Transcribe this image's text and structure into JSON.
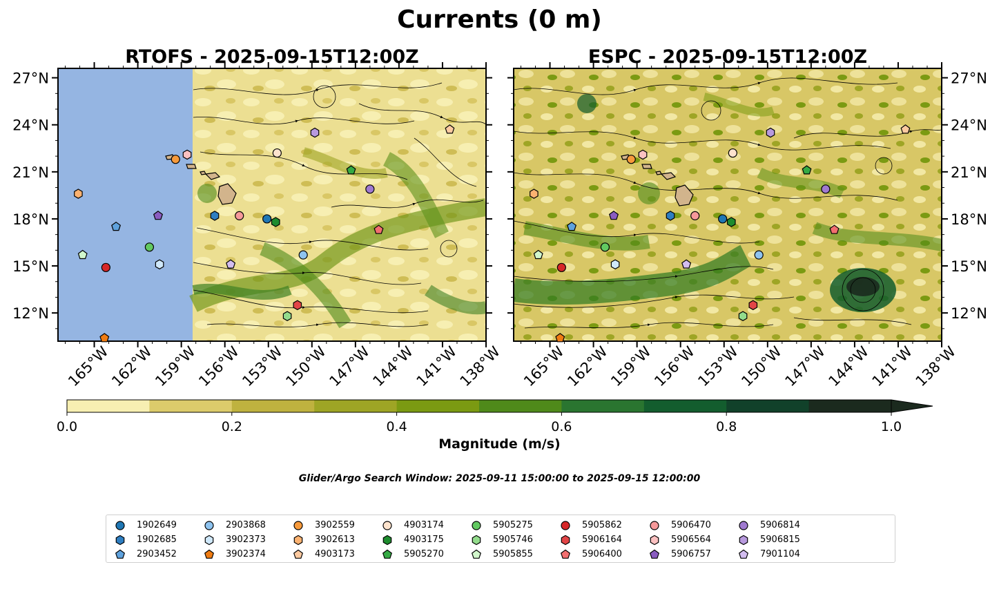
{
  "figure_title": "Currents (0 m)",
  "search_window": "Glider/Argo Search Window: 2025-09-11 15:00:00 to 2025-09-15 12:00:00",
  "chart_data": [
    {
      "type": "map",
      "panel": "left",
      "title": "RTOFS - 2025-09-15T12:00Z",
      "xlim": [
        -167.5,
        -138
      ],
      "ylim": [
        10.2,
        27.6
      ],
      "x_ticks": [
        -165,
        -162,
        -159,
        -156,
        -153,
        -150,
        -147,
        -144,
        -141,
        -138
      ],
      "x_tick_labels": [
        "165°W",
        "162°W",
        "159°W",
        "156°W",
        "153°W",
        "150°W",
        "147°W",
        "144°W",
        "141°W",
        "138°W"
      ],
      "y_ticks": [
        12,
        15,
        18,
        21,
        24,
        27
      ],
      "y_tick_labels": [
        "12°N",
        "15°N",
        "18°N",
        "21°N",
        "24°N",
        "27°N"
      ],
      "data_extent_lon": [
        -158.2,
        -138
      ],
      "no_data_color": "#95b5e2",
      "floats": [
        {
          "id": "1902649",
          "lon": -153.1,
          "lat": 18.0
        },
        {
          "id": "1902685",
          "lon": -156.7,
          "lat": 18.2
        },
        {
          "id": "2903452",
          "lon": -163.5,
          "lat": 17.5
        },
        {
          "id": "2903868",
          "lon": -150.6,
          "lat": 15.7
        },
        {
          "id": "3902373",
          "lon": -160.5,
          "lat": 15.1
        },
        {
          "id": "3902374",
          "lon": -164.3,
          "lat": 10.4
        },
        {
          "id": "3902559",
          "lon": -159.4,
          "lat": 21.8
        },
        {
          "id": "3902613",
          "lon": -166.1,
          "lat": 19.6
        },
        {
          "id": "4903173",
          "lon": -140.5,
          "lat": 23.7
        },
        {
          "id": "4903174",
          "lon": -152.4,
          "lat": 22.2
        },
        {
          "id": "4903175",
          "lon": -152.5,
          "lat": 17.8
        },
        {
          "id": "5905270",
          "lon": -147.3,
          "lat": 21.1
        },
        {
          "id": "5905275",
          "lon": -161.2,
          "lat": 16.2
        },
        {
          "id": "5905746",
          "lon": -151.7,
          "lat": 11.8
        },
        {
          "id": "5905855",
          "lon": -165.8,
          "lat": 15.7
        },
        {
          "id": "5905862",
          "lon": -164.2,
          "lat": 14.9
        },
        {
          "id": "5906164",
          "lon": -151.0,
          "lat": 12.5
        },
        {
          "id": "5906400",
          "lon": -145.4,
          "lat": 17.3
        },
        {
          "id": "5906470",
          "lon": -155.0,
          "lat": 18.2
        },
        {
          "id": "5906564",
          "lon": -158.6,
          "lat": 22.1
        },
        {
          "id": "5906757",
          "lon": -160.6,
          "lat": 18.2
        },
        {
          "id": "5906814",
          "lon": -146.0,
          "lat": 19.9
        },
        {
          "id": "5906815",
          "lon": -149.8,
          "lat": 23.5
        },
        {
          "id": "7901104",
          "lon": -155.6,
          "lat": 15.1
        }
      ]
    },
    {
      "type": "map",
      "panel": "right",
      "title": "ESPC - 2025-09-15T12:00Z",
      "xlim": [
        -167.5,
        -138
      ],
      "ylim": [
        10.2,
        27.6
      ],
      "x_ticks": [
        -165,
        -162,
        -159,
        -156,
        -153,
        -150,
        -147,
        -144,
        -141,
        -138
      ],
      "x_tick_labels": [
        "165°W",
        "162°W",
        "159°W",
        "156°W",
        "153°W",
        "150°W",
        "147°W",
        "144°W",
        "141°W",
        "138°W"
      ],
      "y_ticks": [
        12,
        15,
        18,
        21,
        24,
        27
      ],
      "y_tick_labels": [
        "12°N",
        "15°N",
        "18°N",
        "21°N",
        "24°N",
        "27°N"
      ],
      "data_extent_lon": [
        -167.5,
        -138
      ],
      "floats": [
        {
          "id": "1902649",
          "lon": -153.1,
          "lat": 18.0
        },
        {
          "id": "1902685",
          "lon": -156.7,
          "lat": 18.2
        },
        {
          "id": "2903452",
          "lon": -163.5,
          "lat": 17.5
        },
        {
          "id": "2903868",
          "lon": -150.6,
          "lat": 15.7
        },
        {
          "id": "3902373",
          "lon": -160.5,
          "lat": 15.1
        },
        {
          "id": "3902374",
          "lon": -164.3,
          "lat": 10.4
        },
        {
          "id": "3902559",
          "lon": -159.4,
          "lat": 21.8
        },
        {
          "id": "3902613",
          "lon": -166.1,
          "lat": 19.6
        },
        {
          "id": "4903173",
          "lon": -140.5,
          "lat": 23.7
        },
        {
          "id": "4903174",
          "lon": -152.4,
          "lat": 22.2
        },
        {
          "id": "4903175",
          "lon": -152.5,
          "lat": 17.8
        },
        {
          "id": "5905270",
          "lon": -147.3,
          "lat": 21.1
        },
        {
          "id": "5905275",
          "lon": -161.2,
          "lat": 16.2
        },
        {
          "id": "5905746",
          "lon": -151.7,
          "lat": 11.8
        },
        {
          "id": "5905855",
          "lon": -165.8,
          "lat": 15.7
        },
        {
          "id": "5905862",
          "lon": -164.2,
          "lat": 14.9
        },
        {
          "id": "5906164",
          "lon": -151.0,
          "lat": 12.5
        },
        {
          "id": "5906400",
          "lon": -145.4,
          "lat": 17.3
        },
        {
          "id": "5906470",
          "lon": -155.0,
          "lat": 18.2
        },
        {
          "id": "5906564",
          "lon": -158.6,
          "lat": 22.1
        },
        {
          "id": "5906757",
          "lon": -160.6,
          "lat": 18.2
        },
        {
          "id": "5906814",
          "lon": -146.0,
          "lat": 19.9
        },
        {
          "id": "5906815",
          "lon": -149.8,
          "lat": 23.5
        },
        {
          "id": "7901104",
          "lon": -155.6,
          "lat": 15.1
        }
      ]
    }
  ],
  "colorbar": {
    "label": "Magnitude (m/s)",
    "levels": [
      0.0,
      0.1,
      0.2,
      0.3,
      0.4,
      0.5,
      0.6,
      0.7,
      0.8,
      0.9,
      1.0
    ],
    "tick_values": [
      0.0,
      0.2,
      0.4,
      0.6,
      0.8,
      1.0
    ],
    "tick_labels": [
      "0.0",
      "0.2",
      "0.4",
      "0.6",
      "0.8",
      "1.0"
    ],
    "colors": [
      "#f7efb2",
      "#dccb6b",
      "#bfb23f",
      "#9ea525",
      "#7b9a12",
      "#4f8a1a",
      "#2a7530",
      "#135d2e",
      "#11412a",
      "#1b2a1e"
    ],
    "extend": "max"
  },
  "legend": [
    {
      "id": "1902649",
      "marker": "circle",
      "color": "#1f77b4"
    },
    {
      "id": "1902685",
      "marker": "hexagon",
      "color": "#2e7ec1"
    },
    {
      "id": "2903452",
      "marker": "pentagon",
      "color": "#5fa2dd"
    },
    {
      "id": "2903868",
      "marker": "circle",
      "color": "#8ec3ef"
    },
    {
      "id": "3902373",
      "marker": "hexagon",
      "color": "#cfe8fb"
    },
    {
      "id": "3902374",
      "marker": "pentagon",
      "color": "#f07c12"
    },
    {
      "id": "3902559",
      "marker": "circle",
      "color": "#f79a3b"
    },
    {
      "id": "3902613",
      "marker": "hexagon",
      "color": "#fbb271"
    },
    {
      "id": "4903173",
      "marker": "pentagon",
      "color": "#fdcaa0"
    },
    {
      "id": "4903174",
      "marker": "circle",
      "color": "#fde3cd"
    },
    {
      "id": "4903175",
      "marker": "hexagon",
      "color": "#1e8c2e"
    },
    {
      "id": "5905270",
      "marker": "pentagon",
      "color": "#35aa44"
    },
    {
      "id": "5905275",
      "marker": "circle",
      "color": "#62c961"
    },
    {
      "id": "5905746",
      "marker": "hexagon",
      "color": "#93dc8c"
    },
    {
      "id": "5905855",
      "marker": "pentagon",
      "color": "#d2f7cc"
    },
    {
      "id": "5905862",
      "marker": "circle",
      "color": "#d62728"
    },
    {
      "id": "5906164",
      "marker": "hexagon",
      "color": "#e24547"
    },
    {
      "id": "5906400",
      "marker": "pentagon",
      "color": "#f26f70"
    },
    {
      "id": "5906470",
      "marker": "circle",
      "color": "#f6999a"
    },
    {
      "id": "5906564",
      "marker": "hexagon",
      "color": "#fbc1c1"
    },
    {
      "id": "5906757",
      "marker": "pentagon",
      "color": "#8a5cc0"
    },
    {
      "id": "5906814",
      "marker": "circle",
      "color": "#a07ad0"
    },
    {
      "id": "5906815",
      "marker": "hexagon",
      "color": "#b89ade"
    },
    {
      "id": "7901104",
      "marker": "pentagon",
      "color": "#d3bdf0"
    }
  ]
}
